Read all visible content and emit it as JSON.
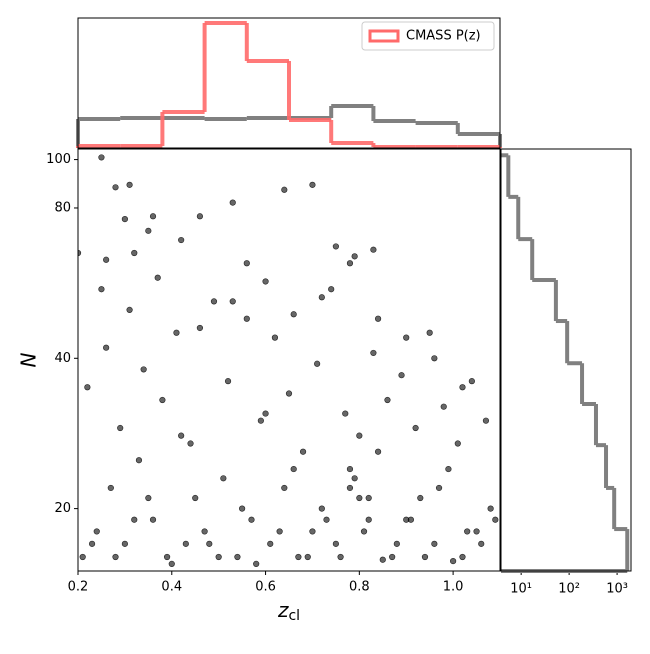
{
  "chart_data": [
    {
      "type": "scatter",
      "color": "#000000",
      "x": [
        0.25,
        0.28,
        0.31,
        0.3,
        0.36,
        0.35,
        0.42,
        0.46,
        0.53,
        0.64,
        0.7,
        0.56,
        0.2,
        0.26,
        0.32,
        0.75,
        0.83,
        0.79,
        0.21,
        0.24,
        0.27,
        0.3,
        0.33,
        0.36,
        0.39,
        0.42,
        0.45,
        0.48,
        0.51,
        0.54,
        0.57,
        0.6,
        0.63,
        0.66,
        0.69,
        0.72,
        0.75,
        0.78,
        0.81,
        0.84,
        0.87,
        0.9,
        0.93,
        0.96,
        0.99,
        1.02,
        1.05,
        1.08,
        0.22,
        0.26,
        0.29,
        0.34,
        0.38,
        0.41,
        0.44,
        0.49,
        0.52,
        0.56,
        0.59,
        0.62,
        0.65,
        0.68,
        0.71,
        0.74,
        0.77,
        0.8,
        0.83,
        0.86,
        0.89,
        0.92,
        0.95,
        0.98,
        1.01,
        1.04,
        1.07,
        0.23,
        0.28,
        0.32,
        0.35,
        0.4,
        0.43,
        0.47,
        0.5,
        0.55,
        0.58,
        0.61,
        0.64,
        0.67,
        0.7,
        0.73,
        0.76,
        0.79,
        0.82,
        0.85,
        0.88,
        0.91,
        0.94,
        0.97,
        1.0,
        1.03,
        1.06,
        1.09,
        0.25,
        0.31,
        0.37,
        0.46,
        0.53,
        0.6,
        0.66,
        0.72,
        0.78,
        0.84,
        0.9,
        0.96,
        1.02,
        0.78,
        0.8,
        0.82
      ],
      "y": [
        101,
        88,
        89,
        76,
        77,
        72,
        69,
        77,
        82,
        87,
        89,
        62,
        65,
        63,
        65,
        67,
        66,
        64,
        16,
        18,
        22,
        17,
        25,
        19,
        16,
        28,
        21,
        17,
        23,
        16,
        19,
        31,
        18,
        24,
        16,
        20,
        17,
        22,
        18,
        26,
        16,
        19,
        21,
        17,
        24,
        16,
        18,
        20,
        35,
        42,
        29,
        38,
        33,
        45,
        27,
        52,
        36,
        48,
        30,
        44,
        34,
        26,
        39,
        55,
        31,
        28,
        41,
        33,
        37,
        29,
        45,
        32,
        27,
        36,
        30,
        17,
        16,
        19,
        21,
        15.5,
        17,
        18,
        16,
        20,
        15.5,
        17,
        22,
        16,
        18,
        19,
        16,
        23,
        21,
        15.8,
        17,
        19,
        16,
        22,
        15.7,
        18,
        17,
        19,
        55,
        50,
        58,
        46,
        52,
        57,
        49,
        53,
        62,
        48,
        44,
        40,
        35,
        24,
        21,
        19
      ],
      "xlim": [
        0.2,
        1.1
      ],
      "xticks": [
        0.2,
        0.4,
        0.6,
        0.8,
        {
          "value": 1,
          "label": "1.0"
        }
      ],
      "ylim": [
        15,
        105
      ],
      "yscale": "log",
      "yticks": [
        20,
        40,
        80,
        100
      ],
      "xlabel": "z",
      "xlabel_subscript": "cl",
      "ylabel": "N"
    },
    {
      "type": "histogram",
      "orientation": "vertical",
      "legend": "upper right",
      "bins": [
        0.2,
        0.29,
        0.38,
        0.47,
        0.56,
        0.65,
        0.74,
        0.83,
        0.92,
        1.01,
        1.1
      ],
      "xlim": [
        0.2,
        1.1
      ],
      "ylim": [
        0,
        130
      ],
      "series": [
        {
          "name": "CMASS P(z)",
          "color": "#ff6a6a",
          "values": [
            2,
            2,
            36,
            125,
            87,
            28,
            5,
            1,
            1,
            1
          ]
        },
        {
          "color": "#808080",
          "values": [
            29,
            30,
            30,
            29,
            30,
            30,
            42,
            27,
            25,
            14
          ]
        }
      ]
    },
    {
      "type": "histogram",
      "orientation": "horizontal",
      "color": "#808080",
      "bins": [
        15,
        18.2,
        22,
        26.8,
        32.4,
        39.1,
        47.5,
        57.4,
        69.3,
        84.2,
        102
      ],
      "values": [
        1630,
        870,
        588,
        363,
        186,
        91,
        53,
        17,
        8.7,
        5.4
      ],
      "xlim": [
        3.8,
        1950
      ],
      "xscale": "log",
      "xticks": [
        {
          "value": 10,
          "label": "10¹"
        },
        {
          "value": 100,
          "label": "10²"
        },
        {
          "value": 1000,
          "label": "10³"
        }
      ],
      "ylim": [
        15,
        105
      ],
      "yscale": "log"
    }
  ]
}
